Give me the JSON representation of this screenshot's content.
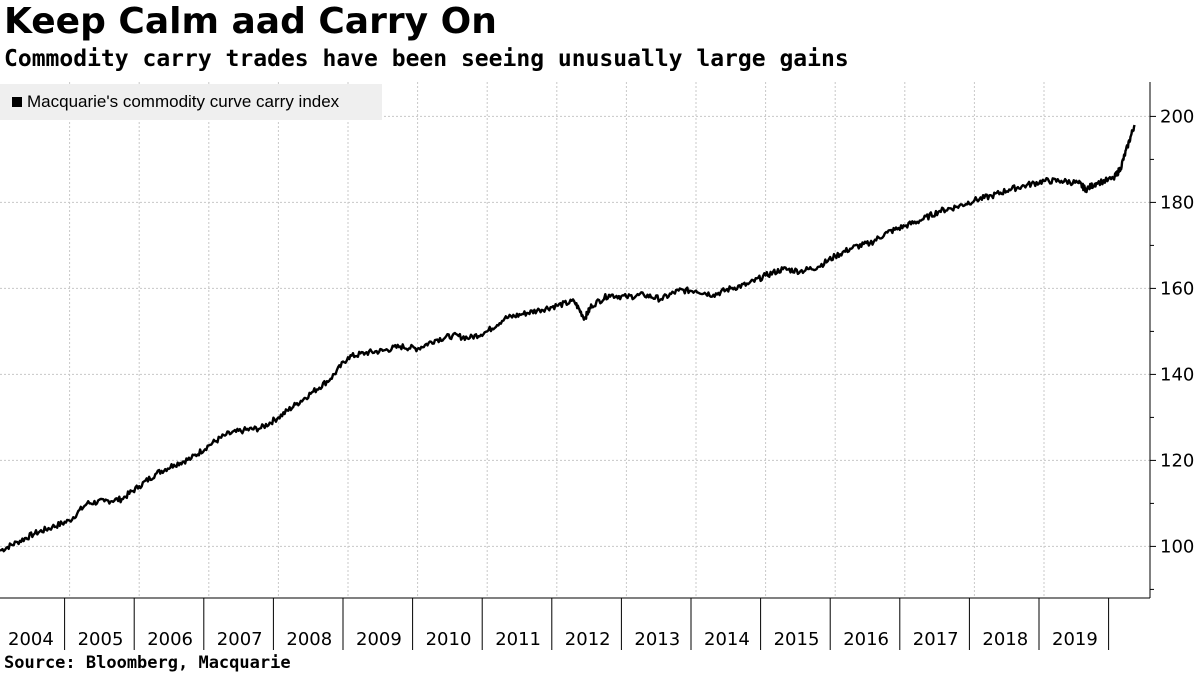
{
  "chart_data": {
    "type": "line",
    "title": "Keep Calm aad Carry On",
    "subtitle": "Commodity carry trades have been seeing unusually large gains",
    "source": "Source: Bloomberg, Macquarie",
    "legend": {
      "label": "Macquarie's commodity curve carry index",
      "color": "#000000",
      "placement": "top-left"
    },
    "x_categories": [
      "2004",
      "2005",
      "2006",
      "2007",
      "2008",
      "2009",
      "2010",
      "2011",
      "2012",
      "2013",
      "2014",
      "2015",
      "2016",
      "2017",
      "2018",
      "2019"
    ],
    "x_range": [
      2004.0,
      2020.3
    ],
    "ylim": [
      88,
      208
    ],
    "yticks": [
      100,
      120,
      140,
      160,
      180,
      200
    ],
    "grid": true,
    "series": [
      {
        "name": "Macquarie's commodity curve carry index",
        "color": "#000000",
        "points": [
          [
            2004.0,
            99
          ],
          [
            2004.25,
            101
          ],
          [
            2004.5,
            103
          ],
          [
            2004.75,
            104.5
          ],
          [
            2005.0,
            106
          ],
          [
            2005.25,
            110
          ],
          [
            2005.5,
            110.5
          ],
          [
            2005.75,
            111
          ],
          [
            2006.0,
            114
          ],
          [
            2006.25,
            117
          ],
          [
            2006.5,
            119
          ],
          [
            2006.75,
            120.5
          ],
          [
            2007.0,
            123.5
          ],
          [
            2007.25,
            126
          ],
          [
            2007.5,
            127
          ],
          [
            2007.75,
            127.5
          ],
          [
            2008.0,
            130
          ],
          [
            2008.25,
            133
          ],
          [
            2008.5,
            136
          ],
          [
            2008.75,
            139
          ],
          [
            2009.0,
            144
          ],
          [
            2009.25,
            145
          ],
          [
            2009.5,
            145.5
          ],
          [
            2009.75,
            146.5
          ],
          [
            2010.0,
            146
          ],
          [
            2010.25,
            148
          ],
          [
            2010.5,
            149
          ],
          [
            2010.75,
            148.5
          ],
          [
            2011.0,
            150
          ],
          [
            2011.25,
            153
          ],
          [
            2011.5,
            154
          ],
          [
            2011.75,
            155
          ],
          [
            2012.0,
            156
          ],
          [
            2012.25,
            157
          ],
          [
            2012.4,
            153
          ],
          [
            2012.5,
            156
          ],
          [
            2012.75,
            158.5
          ],
          [
            2013.0,
            158
          ],
          [
            2013.25,
            158.5
          ],
          [
            2013.5,
            157.5
          ],
          [
            2013.75,
            159.5
          ],
          [
            2014.0,
            159.5
          ],
          [
            2014.25,
            158.5
          ],
          [
            2014.5,
            160
          ],
          [
            2014.75,
            161
          ],
          [
            2015.0,
            163
          ],
          [
            2015.25,
            164.5
          ],
          [
            2015.5,
            164
          ],
          [
            2015.75,
            165
          ],
          [
            2016.0,
            167.5
          ],
          [
            2016.25,
            169.5
          ],
          [
            2016.5,
            170.5
          ],
          [
            2016.75,
            173
          ],
          [
            2017.0,
            174.5
          ],
          [
            2017.25,
            176
          ],
          [
            2017.5,
            178
          ],
          [
            2017.75,
            179
          ],
          [
            2018.0,
            180.5
          ],
          [
            2018.25,
            181.5
          ],
          [
            2018.5,
            183
          ],
          [
            2018.75,
            184
          ],
          [
            2019.0,
            185
          ],
          [
            2019.25,
            185
          ],
          [
            2019.5,
            184.5
          ],
          [
            2019.6,
            183
          ],
          [
            2019.75,
            184.5
          ],
          [
            2020.0,
            185.5
          ],
          [
            2020.1,
            188
          ],
          [
            2020.2,
            193
          ],
          [
            2020.3,
            198
          ]
        ]
      }
    ]
  }
}
